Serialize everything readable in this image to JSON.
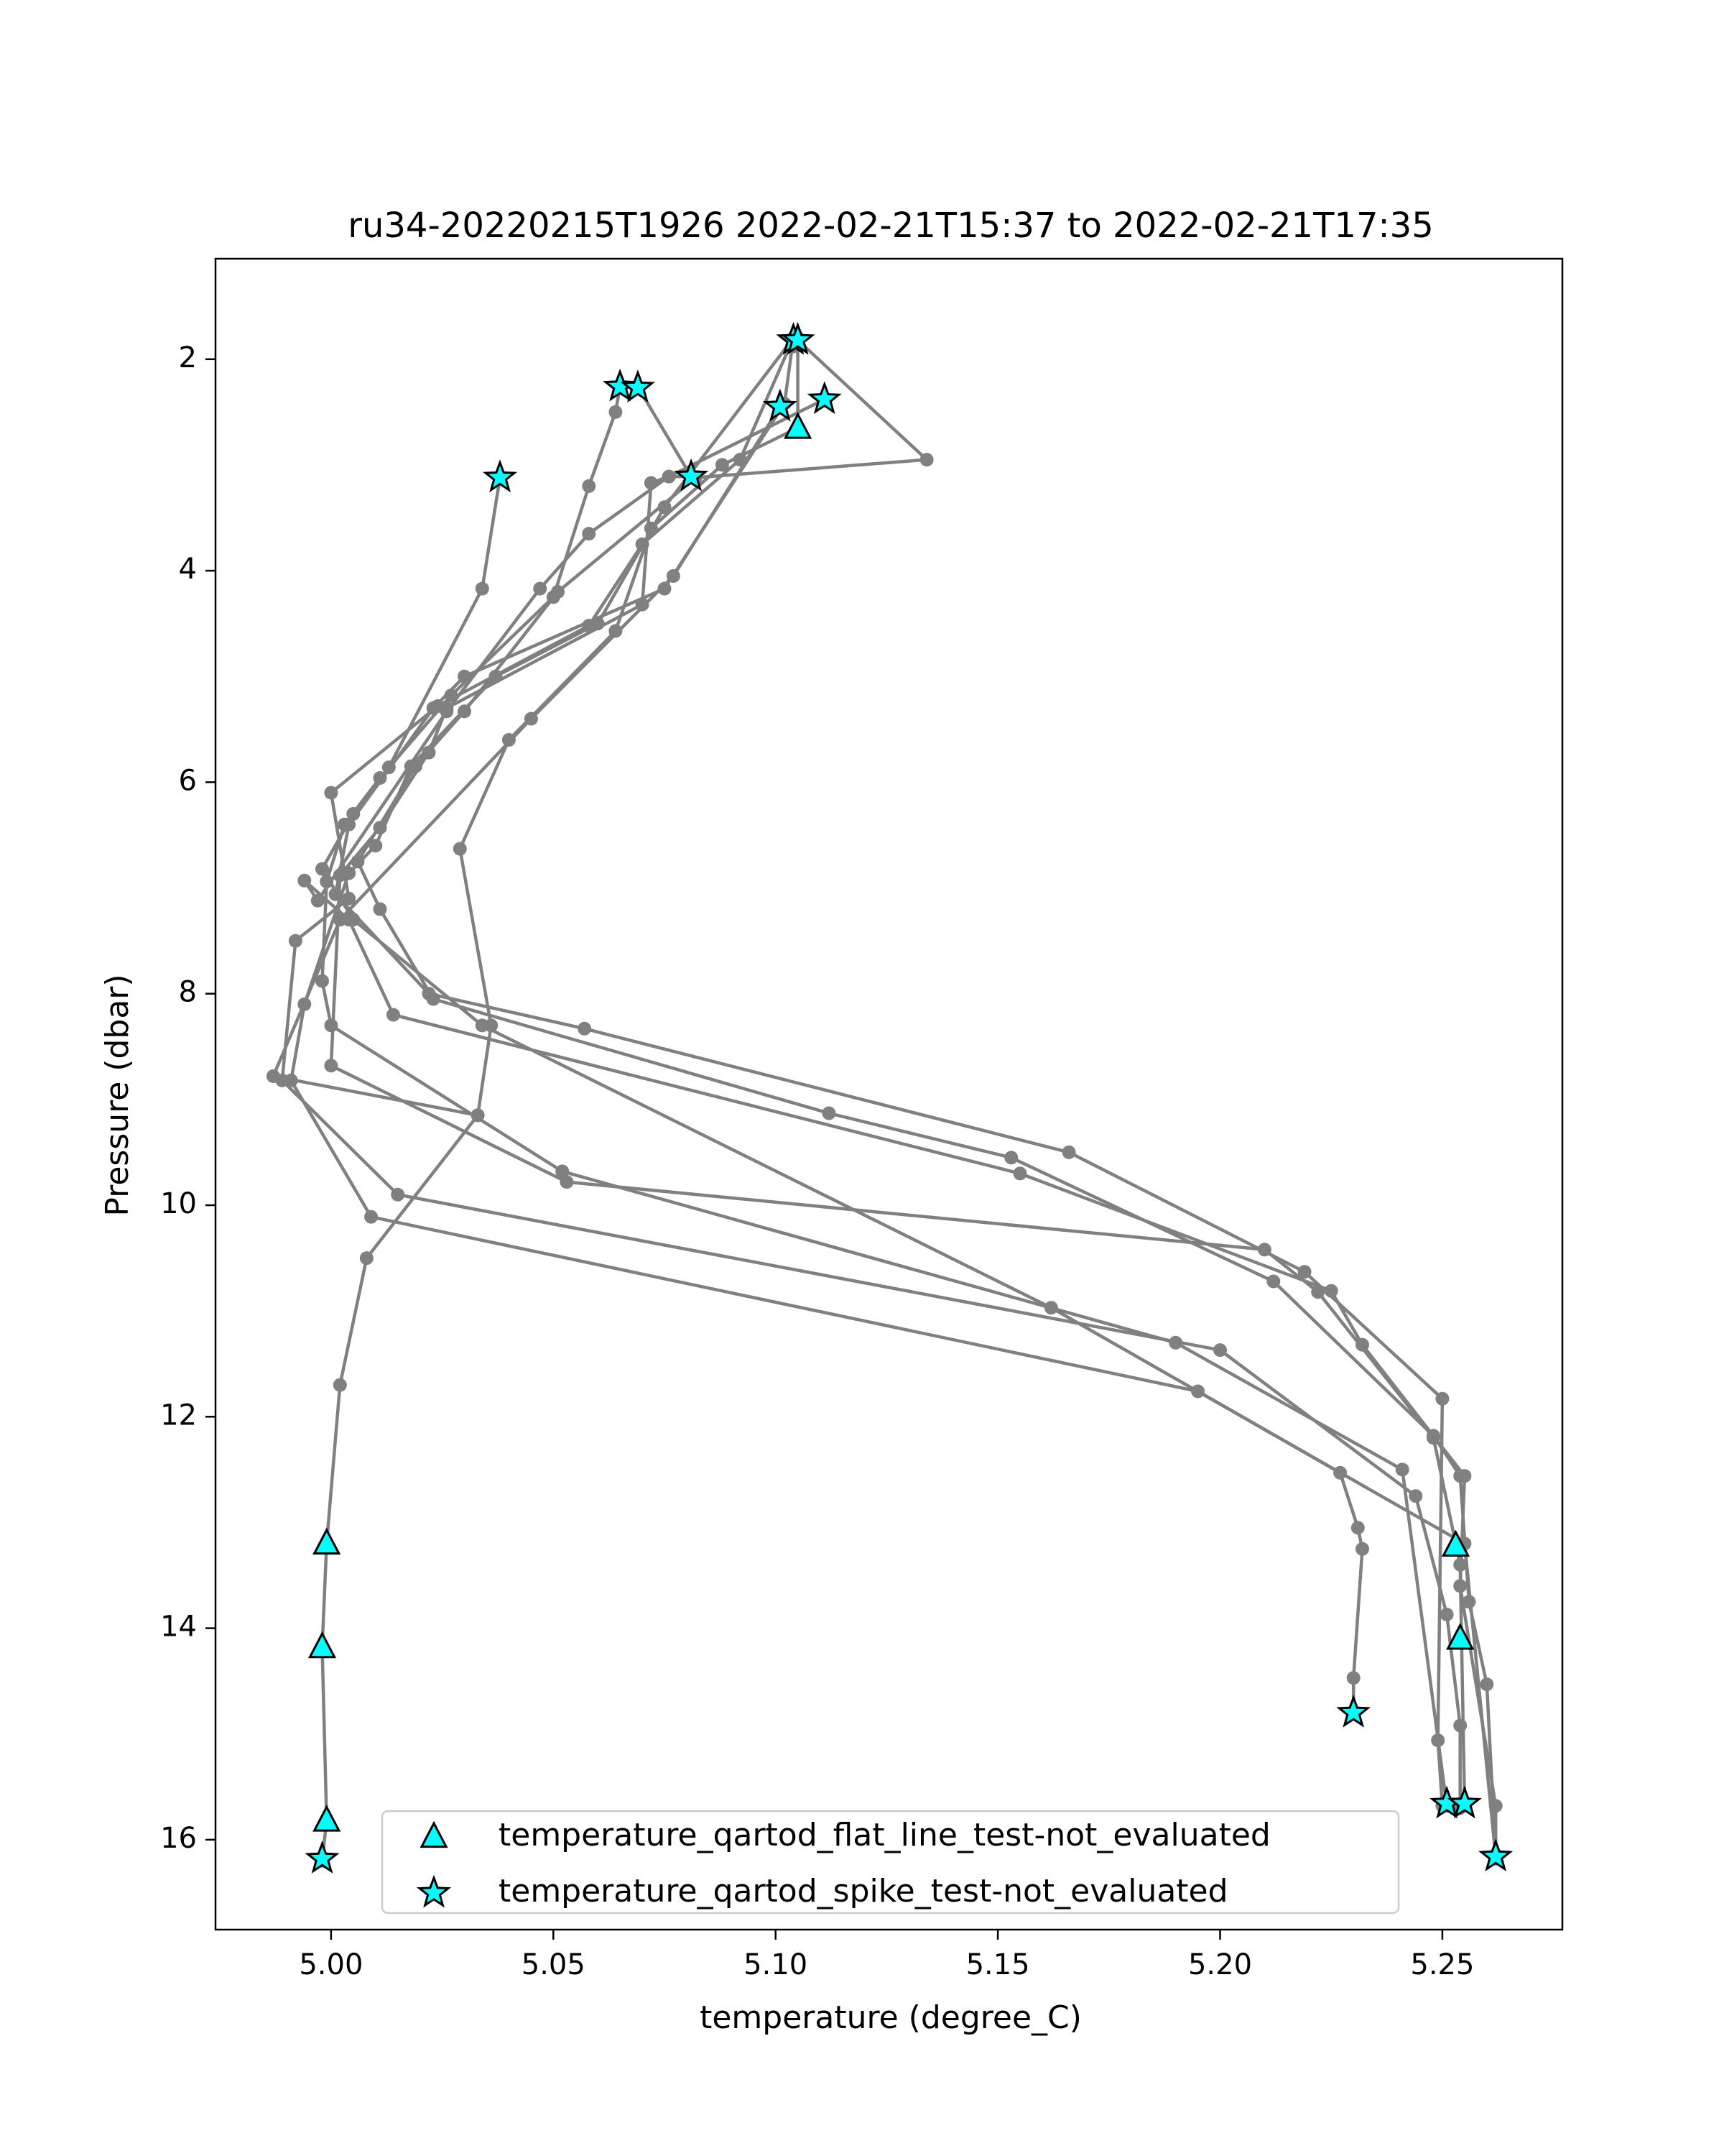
{
  "chart_data": {
    "type": "line",
    "title": "ru34-20220215T1926 2022-02-21T15:37 to 2022-02-21T17:35",
    "xlabel": "temperature (degree_C)",
    "ylabel": "Pressure (dbar)",
    "xlim": [
      4.974,
      5.277
    ],
    "ylim": [
      16.85,
      1.05
    ],
    "y_inverted": true,
    "grid": false,
    "xticks": [
      5.0,
      5.05,
      5.1,
      5.15,
      5.2,
      5.25
    ],
    "xtick_labels": [
      "5.00",
      "5.05",
      "5.10",
      "5.15",
      "5.20",
      "5.25"
    ],
    "yticks": [
      2,
      4,
      6,
      8,
      10,
      12,
      14,
      16
    ],
    "ytick_labels": [
      "2",
      "4",
      "6",
      "8",
      "10",
      "12",
      "14",
      "16"
    ],
    "legend": {
      "position": "lower-right",
      "entries": [
        {
          "label": "temperature_qartod_flat_line_test-not_evaluated",
          "marker": "triangle"
        },
        {
          "label": "temperature_qartod_spike_test-not_evaluated",
          "marker": "star"
        }
      ]
    },
    "colors": {
      "profile_line": "#808080",
      "flag_fill": "#00ffff",
      "flag_edge": "#000000"
    },
    "series": [
      {
        "points": [
          [
            5.038,
            3.12
          ],
          [
            5.034,
            4.17
          ],
          [
            5.013,
            5.86
          ],
          [
            5.005,
            6.3
          ],
          [
            4.998,
            6.82
          ],
          [
            5.005,
            7.3
          ],
          [
            5.034,
            8.3
          ],
          [
            5.162,
            10.97
          ],
          [
            5.255,
            13.2
          ],
          [
            5.262,
            16.16
          ]
        ]
      },
      {
        "points": [
          [
            5.065,
            2.26
          ],
          [
            5.064,
            2.5
          ],
          [
            5.058,
            3.2
          ],
          [
            5.05,
            4.25
          ],
          [
            5.027,
            5.18
          ],
          [
            5.011,
            5.96
          ],
          [
            5.003,
            6.4
          ],
          [
            4.999,
            6.94
          ],
          [
            4.998,
            7.88
          ],
          [
            5.0,
            8.3
          ],
          [
            5.052,
            9.68
          ],
          [
            5.19,
            11.3
          ],
          [
            5.241,
            12.5
          ],
          [
            5.251,
            15.68
          ]
        ]
      },
      {
        "points": [
          [
            5.069,
            2.26
          ],
          [
            5.081,
            3.11
          ],
          [
            5.076,
            3.11
          ],
          [
            5.072,
            3.17
          ],
          [
            5.07,
            4.32
          ],
          [
            5.026,
            5.3
          ],
          [
            5.022,
            5.72
          ],
          [
            5.011,
            6.43
          ],
          [
            5.002,
            6.88
          ],
          [
            5.0,
            8.68
          ],
          [
            5.053,
            9.78
          ],
          [
            5.21,
            10.42
          ],
          [
            5.222,
            10.82
          ],
          [
            5.248,
            12.2
          ],
          [
            5.254,
            13.4
          ],
          [
            5.255,
            15.66
          ]
        ]
      },
      {
        "points": [
          [
            5.104,
            1.8
          ],
          [
            5.102,
            2.42
          ],
          [
            5.075,
            4.17
          ],
          [
            5.03,
            5.0
          ],
          [
            5.023,
            5.3
          ],
          [
            5.004,
            6.4
          ],
          [
            5.001,
            7.06
          ],
          [
            5.022,
            8.0
          ],
          [
            5.057,
            8.33
          ],
          [
            5.166,
            9.5
          ],
          [
            5.219,
            10.63
          ],
          [
            5.25,
            11.83
          ],
          [
            5.249,
            15.06
          ],
          [
            5.25,
            15.68
          ]
        ]
      },
      {
        "points": [
          [
            5.105,
            1.82
          ],
          [
            5.134,
            2.95
          ],
          [
            5.082,
            3.12
          ],
          [
            5.051,
            4.2
          ],
          [
            5.03,
            5.33
          ],
          [
            5.019,
            5.85
          ],
          [
            5.006,
            6.75
          ],
          [
            5.011,
            7.2
          ],
          [
            5.023,
            8.05
          ],
          [
            5.112,
            9.13
          ],
          [
            5.153,
            9.55
          ],
          [
            5.212,
            10.72
          ],
          [
            5.248,
            12.18
          ],
          [
            5.254,
            12.56
          ],
          [
            5.256,
            13.75
          ],
          [
            5.26,
            14.53
          ],
          [
            5.262,
            16.16
          ]
        ]
      },
      {
        "points": [
          [
            5.111,
            2.38
          ],
          [
            5.076,
            3.11
          ],
          [
            5.058,
            3.65
          ],
          [
            5.047,
            4.17
          ],
          [
            5.026,
            5.33
          ],
          [
            4.997,
            7.12
          ],
          [
            4.994,
            6.93
          ],
          [
            5.004,
            7.3
          ],
          [
            5.014,
            8.2
          ],
          [
            5.155,
            9.7
          ],
          [
            5.225,
            10.81
          ],
          [
            5.232,
            11.32
          ],
          [
            5.255,
            12.56
          ],
          [
            5.254,
            13.6
          ],
          [
            5.262,
            15.68
          ],
          [
            5.262,
            16.18
          ]
        ]
      },
      {
        "points": [
          [
            5.101,
            2.45
          ],
          [
            5.077,
            4.05
          ],
          [
            5.045,
            5.4
          ],
          [
            5.002,
            7.3
          ],
          [
            4.987,
            8.78
          ],
          [
            5.033,
            9.15
          ],
          [
            5.036,
            8.3
          ],
          [
            5.029,
            6.63
          ],
          [
            5.04,
            5.6
          ],
          [
            5.064,
            4.57
          ],
          [
            5.072,
            3.6
          ],
          [
            5.088,
            3.0
          ],
          [
            5.105,
            2.65
          ],
          [
            5.105,
            1.8
          ],
          [
            5.104,
            1.88
          ]
        ]
      },
      {
        "points": [
          [
            5.104,
            1.8
          ],
          [
            5.092,
            2.95
          ],
          [
            5.07,
            3.75
          ],
          [
            5.058,
            4.52
          ],
          [
            5.024,
            5.28
          ],
          [
            5.0,
            6.1
          ],
          [
            5.004,
            7.1
          ],
          [
            4.992,
            7.5
          ],
          [
            4.989,
            8.82
          ],
          [
            5.015,
            9.9
          ],
          [
            5.2,
            11.37
          ],
          [
            5.244,
            12.75
          ],
          [
            5.251,
            13.87
          ],
          [
            5.254,
            14.92
          ],
          [
            5.254,
            15.66
          ],
          [
            5.254,
            15.7
          ]
        ]
      },
      {
        "points": [
          [
            5.104,
            1.8
          ],
          [
            5.075,
            3.4
          ],
          [
            5.06,
            4.5
          ],
          [
            5.037,
            5.0
          ],
          [
            5.018,
            5.85
          ],
          [
            5.01,
            6.6
          ],
          [
            5.004,
            6.86
          ],
          [
            4.994,
            8.1
          ],
          [
            4.991,
            8.82
          ],
          [
            5.009,
            10.11
          ],
          [
            5.195,
            11.76
          ],
          [
            5.227,
            12.53
          ],
          [
            5.231,
            13.05
          ],
          [
            5.232,
            13.25
          ],
          [
            5.23,
            14.47
          ],
          [
            5.23,
            14.8
          ]
        ]
      },
      {
        "points": [
          [
            5.033,
            9.15
          ],
          [
            5.008,
            10.5
          ],
          [
            5.002,
            11.7
          ],
          [
            4.999,
            13.2
          ],
          [
            4.998,
            14.18
          ],
          [
            4.999,
            15.82
          ],
          [
            4.998,
            16.2
          ]
        ]
      }
    ],
    "flat_line_flags": [
      [
        5.105,
        2.65
      ],
      [
        4.999,
        13.2
      ],
      [
        4.998,
        14.18
      ],
      [
        4.999,
        15.82
      ],
      [
        5.253,
        13.22
      ],
      [
        5.254,
        14.1
      ]
    ],
    "spike_flags": [
      [
        5.104,
        1.82
      ],
      [
        5.105,
        1.82
      ],
      [
        5.065,
        2.26
      ],
      [
        5.069,
        2.27
      ],
      [
        5.101,
        2.45
      ],
      [
        5.111,
        2.38
      ],
      [
        5.038,
        3.12
      ],
      [
        5.081,
        3.11
      ],
      [
        5.23,
        14.8
      ],
      [
        4.998,
        16.18
      ],
      [
        5.251,
        15.66
      ],
      [
        5.255,
        15.66
      ],
      [
        5.262,
        16.16
      ]
    ]
  }
}
